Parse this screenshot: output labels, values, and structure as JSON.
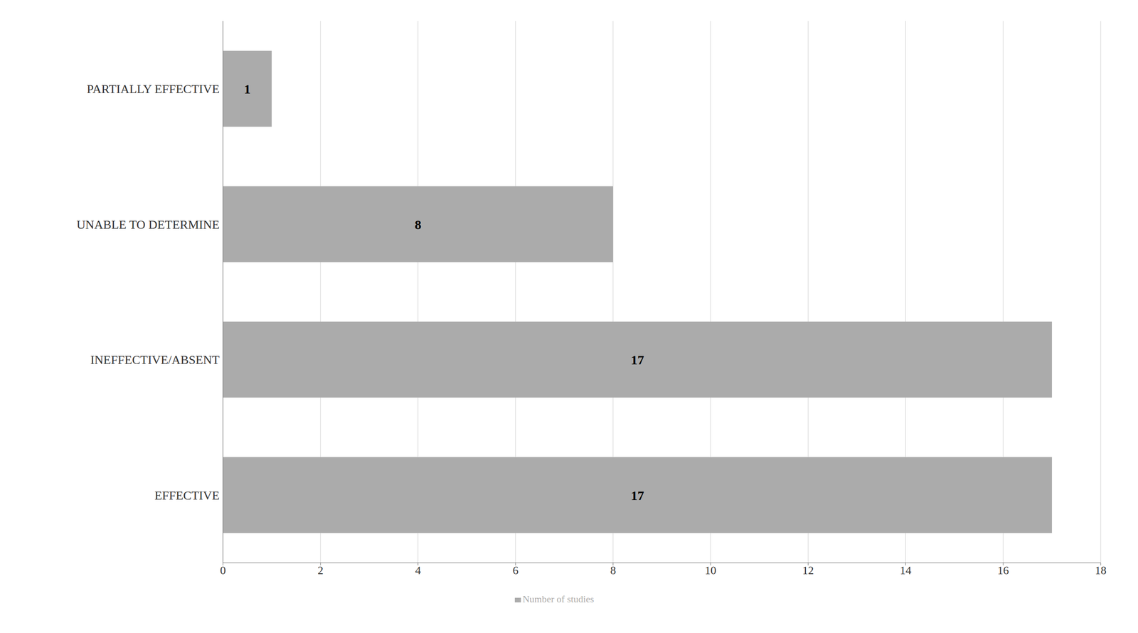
{
  "chart_data": {
    "type": "bar",
    "orientation": "horizontal",
    "categories": [
      "EFFECTIVE",
      "INEFFECTIVE/ABSENT",
      "UNABLE TO DETERMINE",
      "PARTIALLY EFFECTIVE"
    ],
    "series": [
      {
        "name": "Number of studies",
        "color": "#ABABAB",
        "values": [
          17,
          17,
          8,
          1
        ]
      }
    ],
    "xlim": [
      0,
      18
    ],
    "xticks": [
      0,
      2,
      4,
      6,
      8,
      10,
      12,
      14,
      16,
      18
    ],
    "grid": true,
    "legend": "bottom",
    "data_labels": true
  }
}
